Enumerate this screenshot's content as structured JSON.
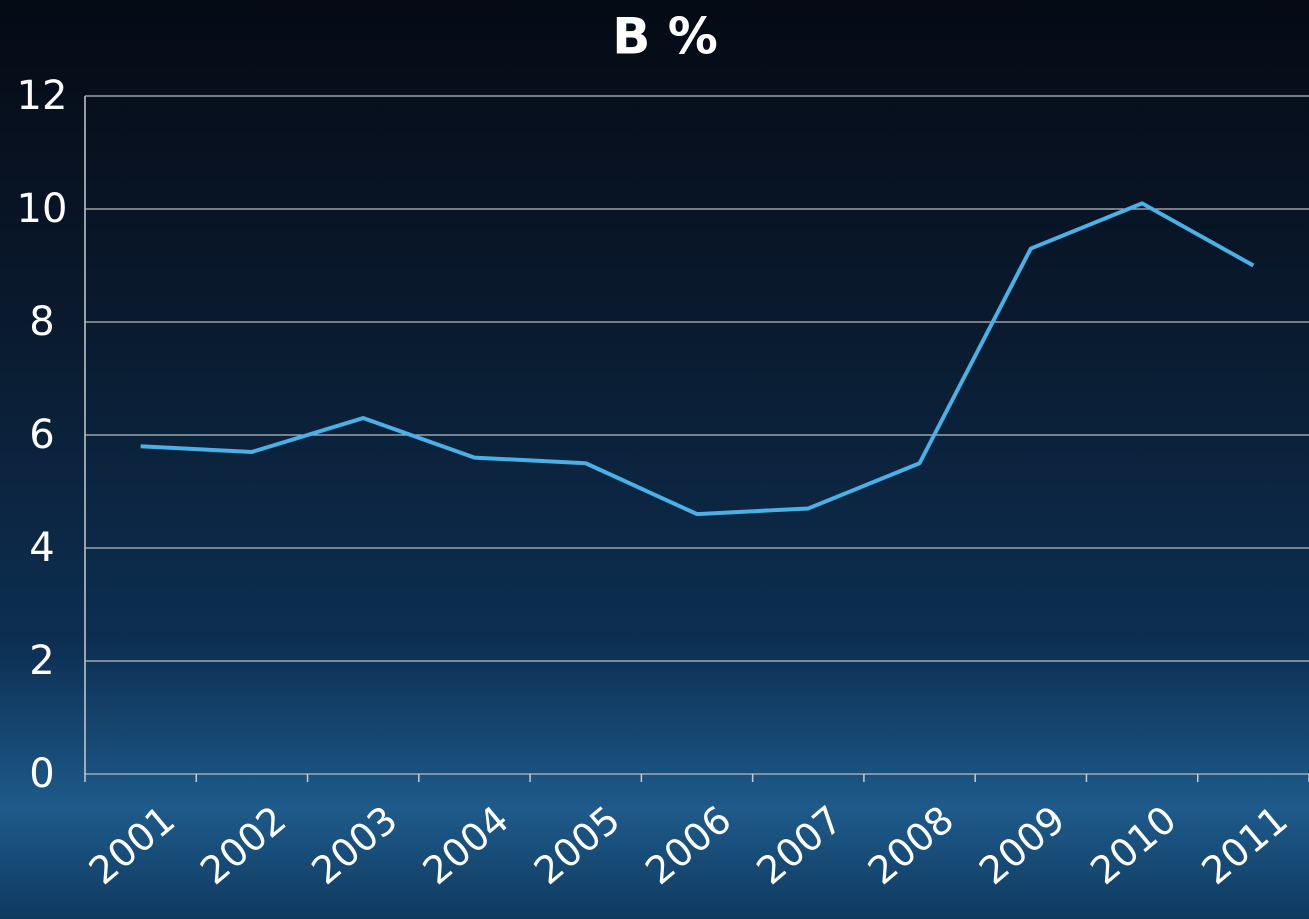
{
  "chart_data": {
    "type": "line",
    "title": "B %",
    "categories": [
      "2001",
      "2002",
      "2003",
      "2004",
      "2005",
      "2006",
      "2007",
      "2008",
      "2009",
      "2010",
      "2011"
    ],
    "values": [
      5.8,
      5.7,
      6.3,
      5.6,
      5.5,
      4.6,
      4.7,
      5.5,
      9.3,
      10.1,
      9.0
    ],
    "color": "#4ab0e6",
    "ylim": [
      0,
      12
    ],
    "yticks": [
      0,
      2,
      4,
      6,
      8,
      10,
      12
    ],
    "grid": true
  }
}
